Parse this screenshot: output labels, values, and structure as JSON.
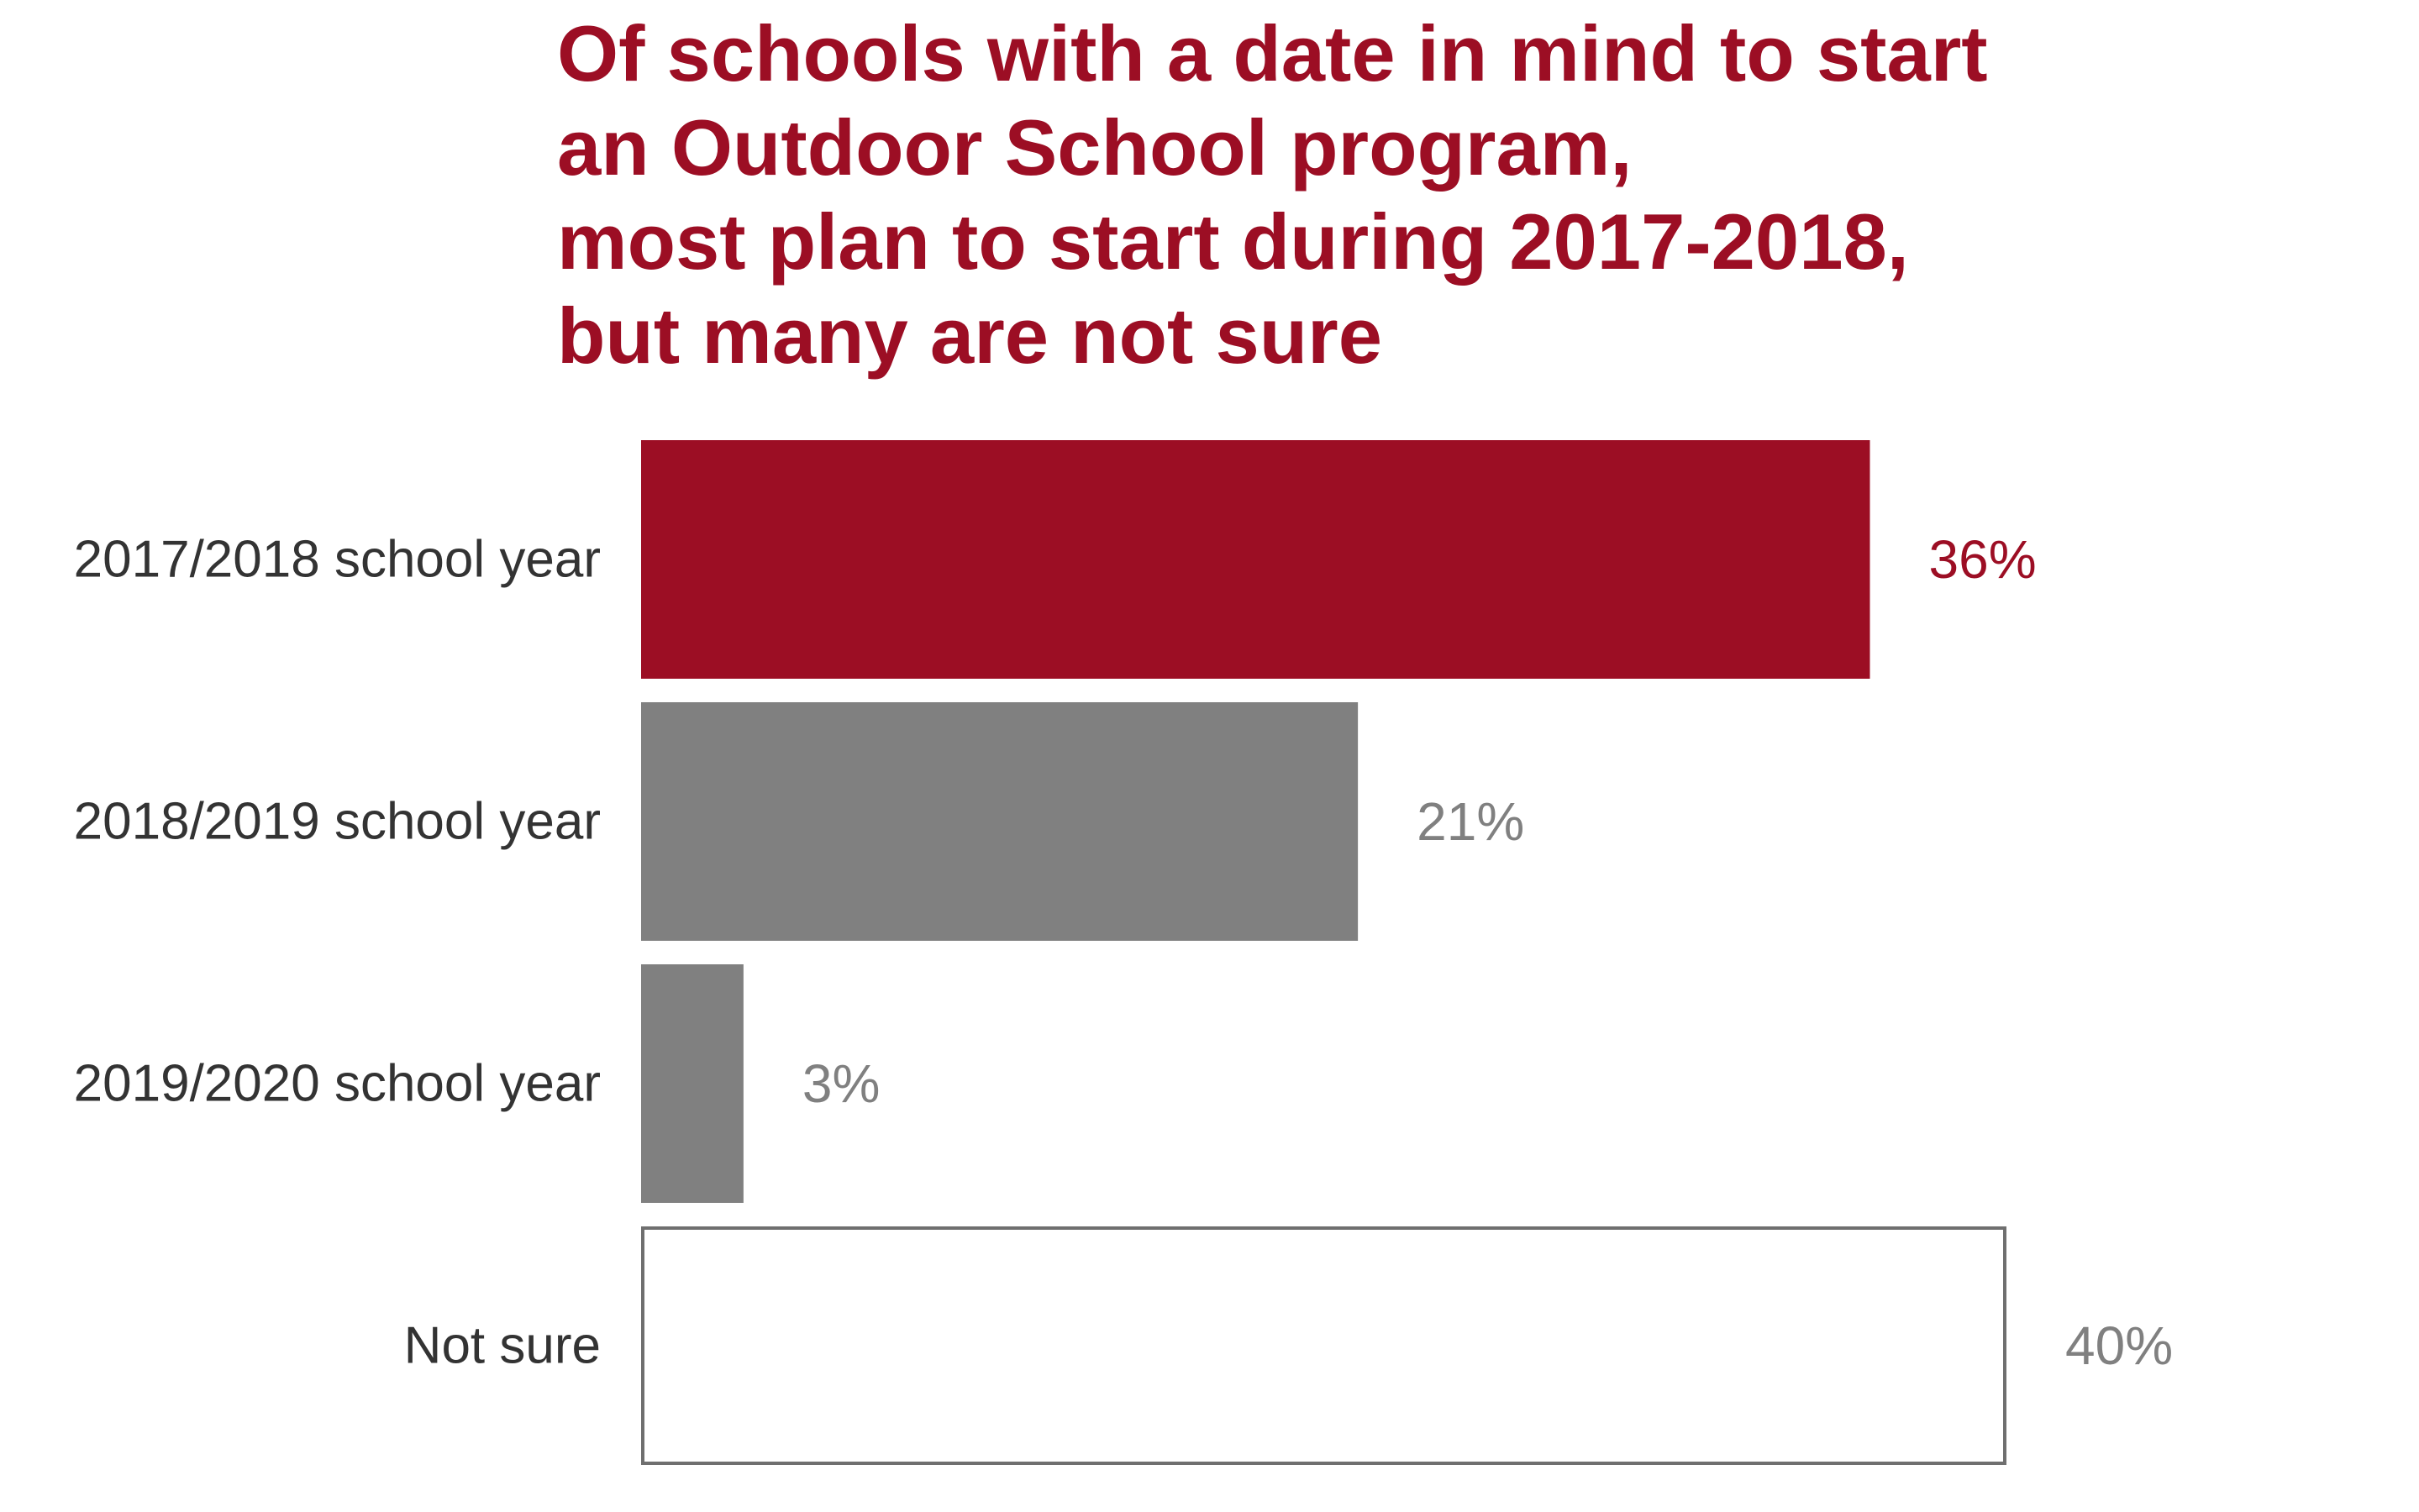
{
  "chart_data": {
    "type": "bar",
    "orientation": "horizontal",
    "title_lines": [
      "Of schools with a date in mind to start",
      "an Outdoor School program,",
      "most plan to start during 2017-2018,",
      "but many are not sure"
    ],
    "categories": [
      "2017/2018 school year",
      "2018/2019 school year",
      "2019/2020 school year",
      "Not sure"
    ],
    "values": [
      36,
      21,
      3,
      40
    ],
    "value_labels": [
      "36%",
      "21%",
      "3%",
      "40%"
    ],
    "unit": "%",
    "xlim": [
      0,
      40
    ],
    "grid": false,
    "legend": "none",
    "colors": {
      "title": "#9c0e24",
      "highlight_bar": "#9c0e24",
      "highlight_label": "#9c0e24",
      "neutral_bar": "#808080",
      "neutral_label": "#808080",
      "outline_bar_fill": "#ffffff",
      "outline_bar_stroke": "#6f6f6f",
      "category_label": "#333333"
    },
    "bar_styles": [
      "highlight",
      "neutral",
      "neutral",
      "outline"
    ]
  }
}
